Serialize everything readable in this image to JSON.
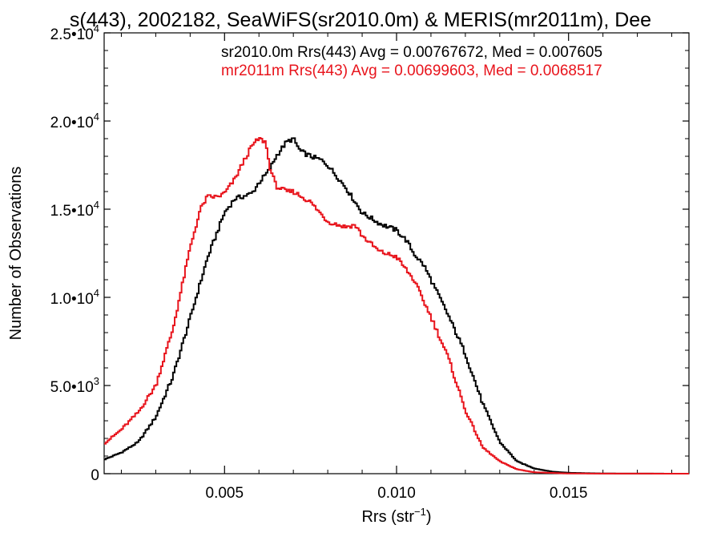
{
  "chart_data": {
    "type": "line",
    "title": "s(443), 2002182, SeaWiFS(sr2010.0m) & MERIS(mr2011m), Dee",
    "xlabel": "Rrs (str",
    "xlabel_sup": "−1",
    "xlabel_end": ")",
    "ylabel": "Number of Observations",
    "xlim": [
      0.0015,
      0.0185
    ],
    "ylim": [
      0,
      25000
    ],
    "step": true,
    "x_ticks": [
      {
        "value": 0.005,
        "label": "0.005"
      },
      {
        "value": 0.01,
        "label": "0.010"
      },
      {
        "value": 0.015,
        "label": "0.015"
      }
    ],
    "y_ticks": [
      {
        "value": 0,
        "mant": "0",
        "exp": ""
      },
      {
        "value": 5000,
        "mant": "5.0•10",
        "exp": "3"
      },
      {
        "value": 10000,
        "mant": "1.0•10",
        "exp": "4"
      },
      {
        "value": 15000,
        "mant": "1.5•10",
        "exp": "4"
      },
      {
        "value": 20000,
        "mant": "2.0•10",
        "exp": "4"
      },
      {
        "value": 25000,
        "mant": "2.5•10",
        "exp": "4"
      }
    ],
    "annotations": [
      {
        "text": "sr2010.0m Rrs(443) Avg = 0.00767672, Med = 0.007605",
        "color": "#000000"
      },
      {
        "text": "mr2011m Rrs(443) Avg = 0.00699603, Med = 0.0068517",
        "color": "#e8141c"
      }
    ],
    "series": [
      {
        "color": "#000000",
        "x": [
          0.0015,
          0.002,
          0.0025,
          0.003,
          0.0035,
          0.004,
          0.0045,
          0.005,
          0.0053,
          0.0055,
          0.0058,
          0.006,
          0.0063,
          0.0065,
          0.0068,
          0.007,
          0.0072,
          0.0075,
          0.0078,
          0.008,
          0.0085,
          0.009,
          0.0095,
          0.01,
          0.0103,
          0.0105,
          0.0108,
          0.011,
          0.0115,
          0.012,
          0.0125,
          0.013,
          0.0135,
          0.014,
          0.0145,
          0.015,
          0.016,
          0.0185
        ],
        "y": [
          800,
          1200,
          1800,
          3200,
          5500,
          8800,
          12200,
          14800,
          15600,
          15700,
          15900,
          16500,
          17200,
          18000,
          18800,
          19000,
          18300,
          18000,
          17800,
          17500,
          16300,
          14800,
          14200,
          13800,
          13200,
          12500,
          11800,
          11000,
          9000,
          6800,
          4000,
          1800,
          700,
          300,
          120,
          50,
          10,
          0
        ]
      },
      {
        "color": "#e8141c",
        "x": [
          0.0015,
          0.002,
          0.0025,
          0.003,
          0.0035,
          0.004,
          0.0043,
          0.0045,
          0.0048,
          0.005,
          0.0053,
          0.0055,
          0.0058,
          0.006,
          0.0062,
          0.0063,
          0.0065,
          0.0068,
          0.007,
          0.0075,
          0.008,
          0.0085,
          0.0088,
          0.009,
          0.0095,
          0.01,
          0.0105,
          0.011,
          0.0115,
          0.012,
          0.0125,
          0.013,
          0.0135,
          0.014,
          0.015,
          0.0185
        ],
        "y": [
          1700,
          2500,
          3500,
          5000,
          8200,
          12800,
          15000,
          15700,
          15700,
          15900,
          16700,
          17500,
          18600,
          19000,
          18800,
          17500,
          16300,
          16000,
          16000,
          15400,
          14300,
          14000,
          14100,
          13500,
          12600,
          12300,
          11000,
          8900,
          6600,
          3600,
          1500,
          700,
          250,
          80,
          10,
          0
        ]
      }
    ]
  }
}
